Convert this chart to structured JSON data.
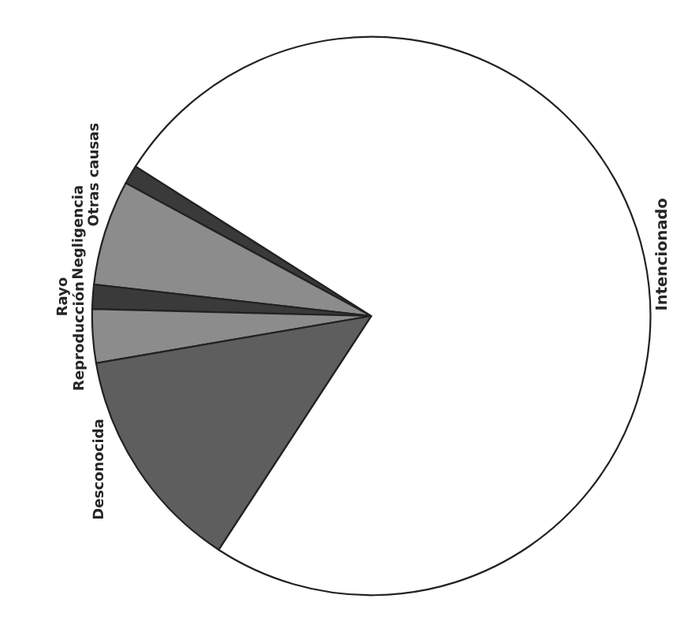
{
  "chart_data": {
    "type": "pie",
    "categories": [
      "Otras causas",
      "Negligencia",
      "Rayo",
      "Reproducción",
      "Desconocida",
      "Intencionado"
    ],
    "values": [
      1.1,
      6.1,
      1.4,
      3.1,
      13.1,
      75.2
    ],
    "colors": [
      "#3a3a3a",
      "#8c8c8c",
      "#3a3a3a",
      "#8c8c8c",
      "#5e5e5e",
      "#ffffff"
    ]
  }
}
